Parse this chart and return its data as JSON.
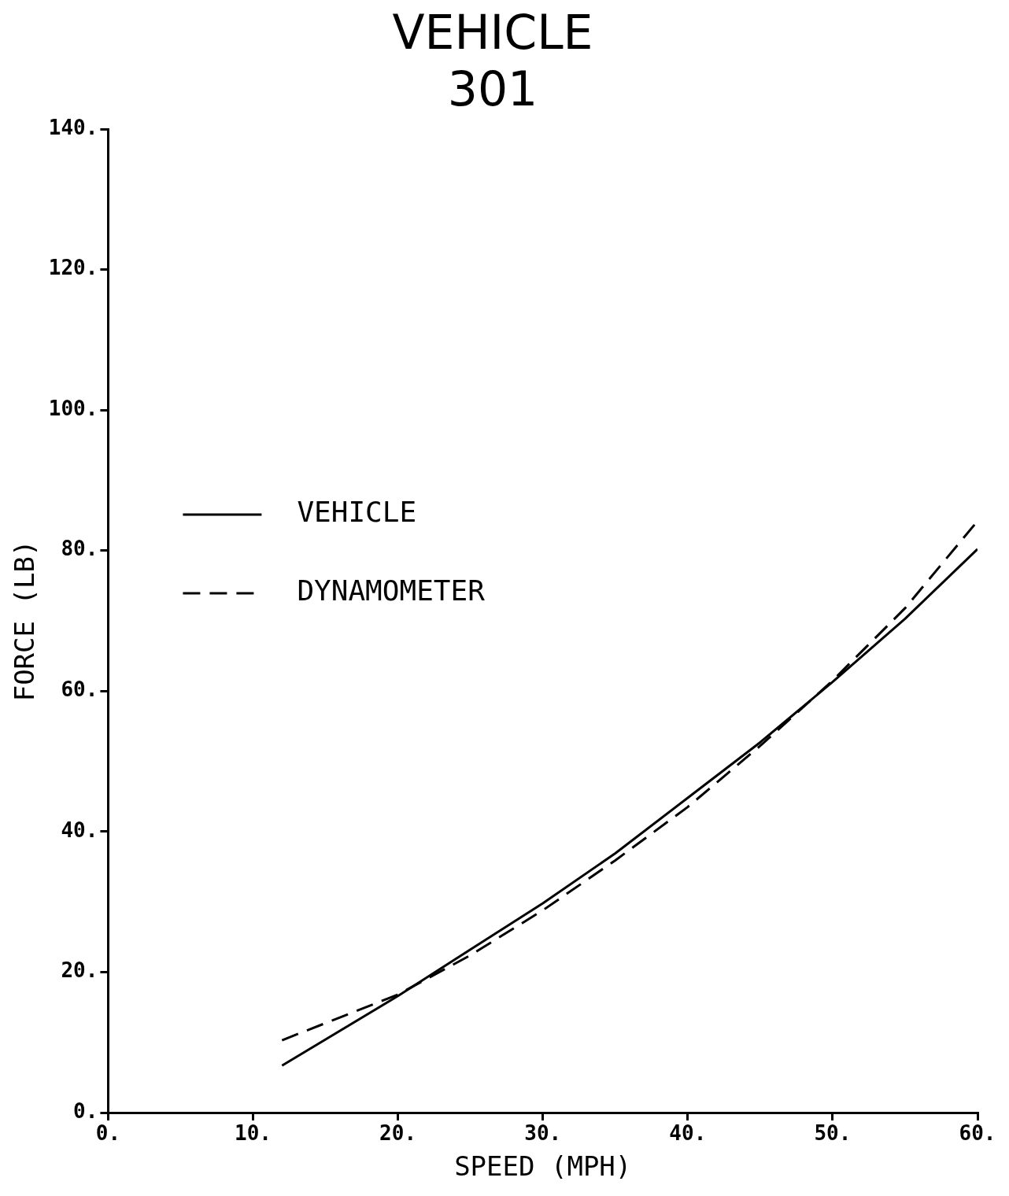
{
  "chart_data": {
    "type": "line",
    "title": "VEHICLE 301",
    "xlabel": "SPEED (MPH)",
    "ylabel": "FORCE (LB)",
    "xlim": [
      0,
      60
    ],
    "ylim": [
      0,
      140
    ],
    "xticks": [
      {
        "value": 0,
        "label": "0."
      },
      {
        "value": 10,
        "label": "10."
      },
      {
        "value": 20,
        "label": "20."
      },
      {
        "value": 30,
        "label": "30."
      },
      {
        "value": 40,
        "label": "40."
      },
      {
        "value": 50,
        "label": "50."
      },
      {
        "value": 60,
        "label": "60."
      }
    ],
    "yticks": [
      {
        "value": 0,
        "label": "0."
      },
      {
        "value": 20,
        "label": "20."
      },
      {
        "value": 40,
        "label": "40."
      },
      {
        "value": 60,
        "label": "60."
      },
      {
        "value": 80,
        "label": "80."
      },
      {
        "value": 100,
        "label": "100."
      },
      {
        "value": 120,
        "label": "120."
      },
      {
        "value": 140,
        "label": "140."
      }
    ],
    "x": [
      12,
      20,
      25,
      30,
      35,
      40,
      45,
      50,
      55,
      60
    ],
    "series": [
      {
        "name": "VEHICLE",
        "color": "#000000",
        "line_style": "solid",
        "values": [
          6.7,
          16.6,
          23.2,
          29.8,
          36.9,
          44.8,
          52.7,
          61.3,
          70.3,
          80.2
        ]
      },
      {
        "name": "DYNAMOMETER",
        "color": "#000000",
        "line_style": "dashed",
        "values": [
          10.3,
          16.8,
          22.4,
          28.8,
          35.9,
          43.5,
          52.2,
          61.5,
          71.8,
          84.2
        ]
      }
    ],
    "grid": false,
    "legend": "top left",
    "marker": "none"
  }
}
